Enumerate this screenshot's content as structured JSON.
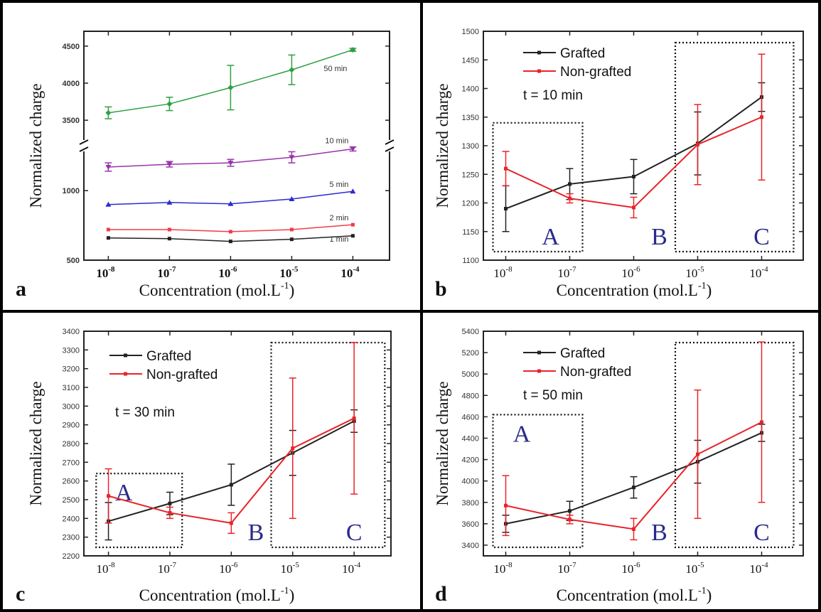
{
  "colors": {
    "black": "#222222",
    "red": "#e8242a",
    "green": "#2ea043",
    "purple": "#9933aa",
    "blue": "#2b2bd0",
    "pink": "#f23b4b",
    "region_letter": "#2a2a8c"
  },
  "chart_data": [
    {
      "panel": "a",
      "type": "line",
      "xlabel": "Concentration (mol.L",
      "xlabel_sup": "-1",
      "xlabel_close": ")",
      "ylabel": "Normalized charge",
      "x_ticks": [
        "10",
        "10",
        "10",
        "10",
        "10"
      ],
      "x_tick_exps": [
        "-8",
        "-7",
        "-6",
        "-5",
        "-4"
      ],
      "y_ticks": [
        "500",
        "1000",
        "3500",
        "4000",
        "4500"
      ],
      "x": [
        -8,
        -7,
        -6,
        -5,
        -4
      ],
      "series": [
        {
          "name": "1 min",
          "color": "black",
          "values": [
            660,
            655,
            635,
            650,
            675
          ],
          "err": [
            0,
            0,
            0,
            0,
            0
          ]
        },
        {
          "name": "2 min",
          "color": "pink",
          "values": [
            720,
            720,
            705,
            720,
            755
          ],
          "err": [
            0,
            0,
            0,
            0,
            0
          ]
        },
        {
          "name": "5 min",
          "color": "blue",
          "values": [
            900,
            915,
            905,
            940,
            995
          ],
          "err": [
            0,
            0,
            0,
            0,
            0
          ]
        },
        {
          "name": "10 min",
          "color": "purple",
          "values": [
            1170,
            1190,
            1200,
            1240,
            1300
          ],
          "err": [
            30,
            20,
            25,
            40,
            15
          ]
        },
        {
          "name": "50 min",
          "color": "green",
          "values": [
            3600,
            3720,
            3940,
            4180,
            4450
          ],
          "err": [
            80,
            90,
            300,
            200,
            20
          ]
        }
      ]
    },
    {
      "panel": "b",
      "type": "line",
      "xlabel": "Concentration (mol.L",
      "xlabel_sup": "-1",
      "xlabel_close": ")",
      "ylabel": "Normalized charge",
      "ylim": [
        1100,
        1500
      ],
      "y_ticks": [
        "1100",
        "1150",
        "1200",
        "1250",
        "1300",
        "1350",
        "1400",
        "1450",
        "1500"
      ],
      "x_ticks": [
        "10",
        "10",
        "10",
        "10",
        "10"
      ],
      "x_tick_exps": [
        "-8",
        "-7",
        "-6",
        "-5",
        "-4"
      ],
      "x": [
        -8,
        -7,
        -6,
        -5,
        -4
      ],
      "legend": [
        "Grafted",
        "Non-grafted"
      ],
      "annotation": "t = 10 min",
      "regions": [
        "A",
        "B",
        "C"
      ],
      "series": [
        {
          "name": "Grafted",
          "color": "black",
          "values": [
            1190,
            1233,
            1246,
            1304,
            1385
          ],
          "err": [
            40,
            27,
            30,
            55,
            25
          ]
        },
        {
          "name": "Non-grafted",
          "color": "red",
          "values": [
            1260,
            1208,
            1192,
            1302,
            1350
          ],
          "err": [
            30,
            8,
            18,
            70,
            110
          ]
        }
      ]
    },
    {
      "panel": "c",
      "type": "line",
      "xlabel": "Concentration (mol.L",
      "xlabel_sup": "-1",
      "xlabel_close": ")",
      "ylabel": "Normalized charge",
      "ylim": [
        2200,
        3400
      ],
      "y_ticks": [
        "2200",
        "2300",
        "2400",
        "2500",
        "2600",
        "2700",
        "2800",
        "2900",
        "3000",
        "3100",
        "3200",
        "3300",
        "3400"
      ],
      "x_ticks": [
        "10",
        "10",
        "10",
        "10",
        "10"
      ],
      "x_tick_exps": [
        "-8",
        "-7",
        "-6",
        "-5",
        "-4"
      ],
      "x": [
        -8,
        -7,
        -6,
        -5,
        -4
      ],
      "legend": [
        "Grafted",
        "Non-grafted"
      ],
      "annotation": "t = 30 min",
      "regions": [
        "A",
        "B",
        "C"
      ],
      "series": [
        {
          "name": "Grafted",
          "color": "black",
          "values": [
            2385,
            2480,
            2580,
            2750,
            2920
          ],
          "err": [
            100,
            60,
            110,
            120,
            60
          ]
        },
        {
          "name": "Non-grafted",
          "color": "red",
          "values": [
            2520,
            2430,
            2375,
            2775,
            2935
          ],
          "err": [
            145,
            30,
            55,
            375,
            405
          ]
        }
      ]
    },
    {
      "panel": "d",
      "type": "line",
      "xlabel": "Concentration (mol.L",
      "xlabel_sup": "-1",
      "xlabel_close": ")",
      "ylabel": "Normalized charge",
      "ylim": [
        3300,
        5400
      ],
      "y_ticks": [
        "3400",
        "3600",
        "3800",
        "4000",
        "4200",
        "4400",
        "4600",
        "4800",
        "5000",
        "5200",
        "5400"
      ],
      "x_ticks": [
        "10",
        "10",
        "10",
        "10",
        "10"
      ],
      "x_tick_exps": [
        "-8",
        "-7",
        "-6",
        "-5",
        "-4"
      ],
      "x": [
        -8,
        -7,
        -6,
        -5,
        -4
      ],
      "legend": [
        "Grafted",
        "Non-grafted"
      ],
      "annotation": "t = 50 min",
      "regions": [
        "A",
        "B",
        "C"
      ],
      "series": [
        {
          "name": "Grafted",
          "color": "black",
          "values": [
            3600,
            3720,
            3940,
            4180,
            4450
          ],
          "err": [
            80,
            90,
            100,
            200,
            80
          ]
        },
        {
          "name": "Non-grafted",
          "color": "red",
          "values": [
            3770,
            3640,
            3550,
            4250,
            4550
          ],
          "err": [
            280,
            40,
            100,
            600,
            750
          ]
        }
      ]
    }
  ]
}
